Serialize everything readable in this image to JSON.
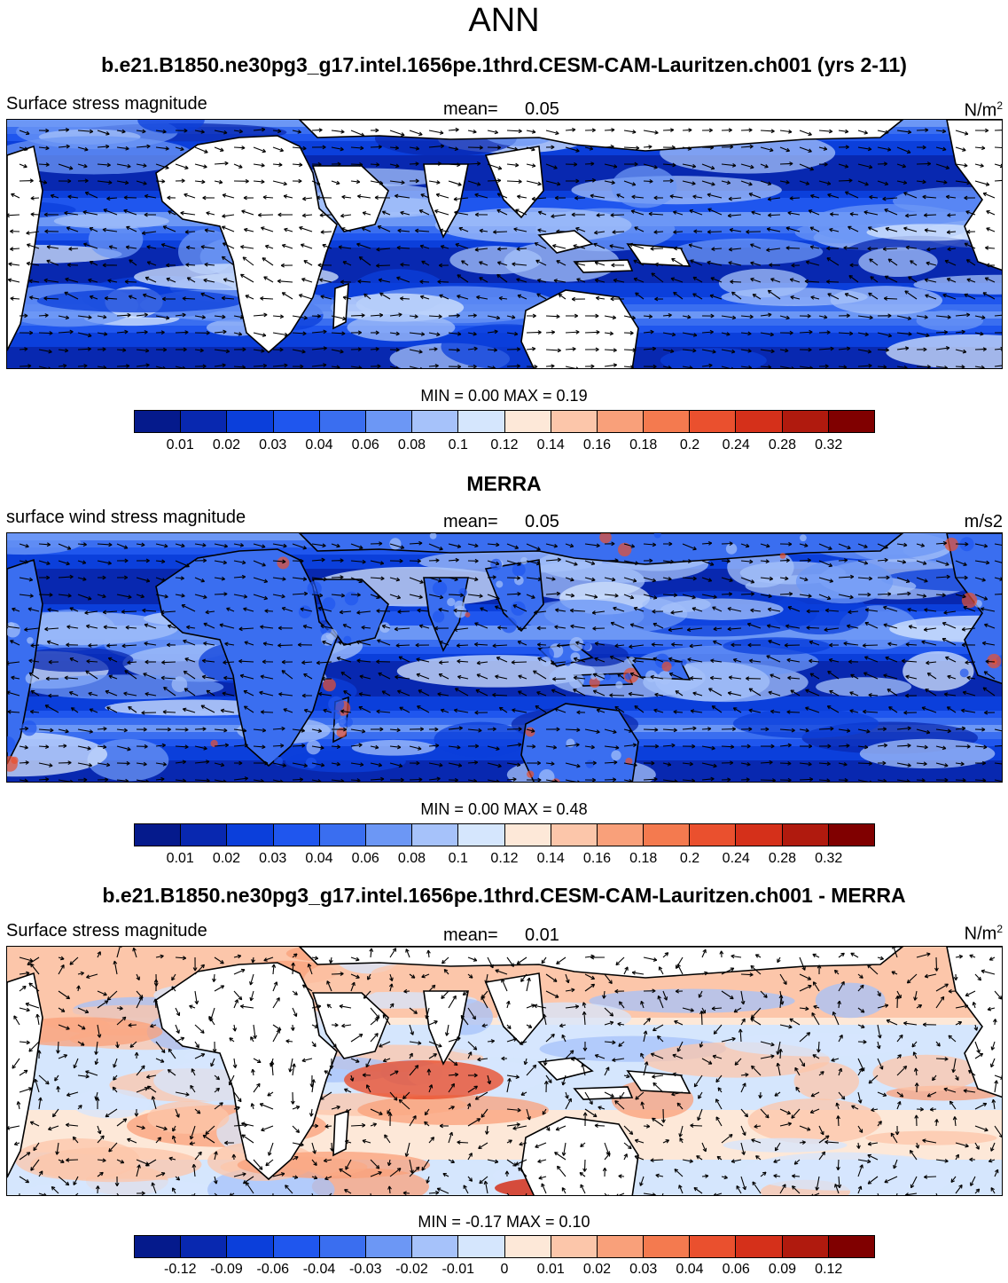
{
  "title": "ANN",
  "units_sup": "2",
  "colors": {
    "land": "#ffffff",
    "arrow": "#000000",
    "palette": [
      "#051a8c",
      "#0828b0",
      "#0b3fdb",
      "#1f56ee",
      "#3a6ef0",
      "#6c97f5",
      "#a6c2fa",
      "#d5e6fd",
      "#fde8d8",
      "#fcc6aa",
      "#f9a07a",
      "#f47a4f",
      "#ea502e",
      "#d5301a",
      "#b01a0e",
      "#800000"
    ]
  },
  "colorbar_labels": [
    "0.01",
    "0.02",
    "0.03",
    "0.04",
    "0.06",
    "0.08",
    "0.1",
    "0.12",
    "0.14",
    "0.16",
    "0.18",
    "0.2",
    "0.24",
    "0.28",
    "0.32"
  ],
  "diff_colorbar_labels": [
    "-0.12",
    "-0.09",
    "-0.06",
    "-0.04",
    "-0.03",
    "-0.02",
    "-0.01",
    "0",
    "0.01",
    "0.02",
    "0.03",
    "0.04",
    "0.06",
    "0.09",
    "0.12"
  ],
  "panels": [
    {
      "heading": "b.e21.B1850.ne30pg3_g17.intel.1656pe.1thrd.CESM-CAM-Lauritzen.ch001 (yrs 2-11)",
      "variable": "Surface stress magnitude",
      "mean_label": "mean=",
      "mean_value": "0.05",
      "units": "N/m",
      "min_label": "MIN =",
      "min_value": "0.00",
      "max_label": "MAX =",
      "max_value": "0.19"
    },
    {
      "heading": "MERRA",
      "variable": "surface wind stress magnitude",
      "mean_label": "mean=",
      "mean_value": "0.05",
      "units": "m/s2",
      "min_label": "MIN =",
      "min_value": "0.00",
      "max_label": "MAX =",
      "max_value": "0.48"
    },
    {
      "heading": "b.e21.B1850.ne30pg3_g17.intel.1656pe.1thrd.CESM-CAM-Lauritzen.ch001 - MERRA",
      "variable": "Surface stress magnitude",
      "mean_label": "mean=",
      "mean_value": "0.01",
      "units": "N/m",
      "min_label": "MIN =",
      "min_value": "-0.17",
      "max_label": "MAX =",
      "max_value": "0.10"
    }
  ]
}
